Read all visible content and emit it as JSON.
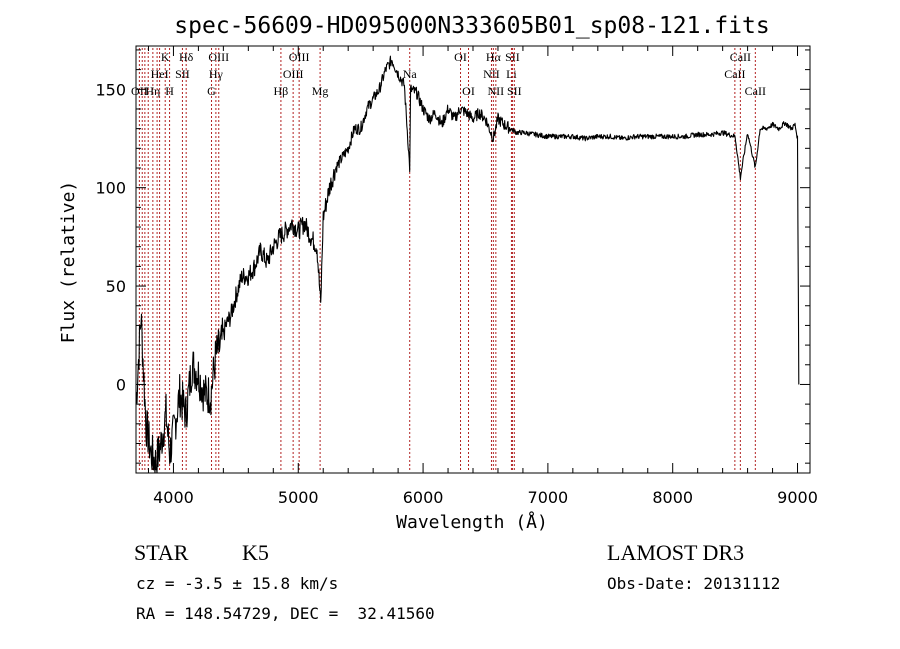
{
  "chart_data": {
    "type": "line",
    "title": "spec-56609-HD095000N333605B01_sp08-121.fits",
    "xlabel": "Wavelength (Å)",
    "ylabel": "Flux (relative)",
    "xlim": [
      3700,
      9100
    ],
    "ylim": [
      -45,
      172
    ],
    "xticks": [
      4000,
      5000,
      6000,
      7000,
      8000,
      9000
    ],
    "xtick_labels": [
      "4000",
      "5000",
      "6000",
      "7000",
      "8000",
      "9000"
    ],
    "yticks": [
      0,
      50,
      100,
      150
    ],
    "ytick_labels": [
      "0",
      "50",
      "100",
      "150"
    ],
    "grid": false,
    "series": [
      {
        "color": "#000000",
        "x": [
          3700,
          3740,
          3780,
          3820,
          3860,
          3900,
          3940,
          3970,
          4000,
          4050,
          4100,
          4150,
          4200,
          4250,
          4300,
          4340,
          4380,
          4420,
          4460,
          4500,
          4550,
          4600,
          4650,
          4700,
          4750,
          4800,
          4850,
          4900,
          4950,
          5000,
          5050,
          5100,
          5150,
          5180,
          5200,
          5250,
          5300,
          5350,
          5400,
          5450,
          5500,
          5550,
          5600,
          5650,
          5700,
          5750,
          5800,
          5850,
          5893,
          5900,
          5950,
          6000,
          6050,
          6100,
          6150,
          6200,
          6250,
          6300,
          6350,
          6400,
          6450,
          6500,
          6563,
          6600,
          6650,
          6700,
          6750,
          6800,
          6900,
          7000,
          7100,
          7200,
          7300,
          7400,
          7500,
          7600,
          7700,
          7800,
          7900,
          8000,
          8100,
          8200,
          8300,
          8400,
          8500,
          8542,
          8600,
          8662,
          8700,
          8750,
          8800,
          8850,
          8900,
          8950,
          8980,
          9000,
          9010
        ],
        "y": [
          -10,
          35,
          -20,
          -35,
          -40,
          -30,
          -15,
          -35,
          -25,
          -5,
          -15,
          10,
          5,
          -5,
          -5,
          15,
          20,
          30,
          35,
          45,
          55,
          55,
          60,
          68,
          62,
          70,
          75,
          78,
          82,
          78,
          82,
          75,
          70,
          40,
          85,
          100,
          110,
          115,
          120,
          130,
          130,
          140,
          145,
          150,
          160,
          165,
          158,
          152,
          110,
          150,
          148,
          140,
          135,
          138,
          132,
          140,
          135,
          140,
          138,
          135,
          138,
          135,
          125,
          135,
          132,
          130,
          128,
          128,
          127,
          126,
          126,
          126,
          125,
          126,
          126,
          125,
          126,
          126,
          126,
          126,
          126,
          127,
          127,
          128,
          126,
          105,
          128,
          110,
          130,
          130,
          132,
          130,
          133,
          130,
          132,
          125,
          0
        ]
      }
    ],
    "lines": [
      {
        "x": 3727,
        "label": "OII",
        "row": 2
      },
      {
        "x": 3750,
        "label": "",
        "row": 0
      },
      {
        "x": 3771,
        "label": "",
        "row": 0
      },
      {
        "x": 3798,
        "label": "",
        "row": 0
      },
      {
        "x": 3835,
        "label": "Hη",
        "row": 2
      },
      {
        "x": 3869,
        "label": "",
        "row": 0
      },
      {
        "x": 3889,
        "label": "HeI",
        "row": 1
      },
      {
        "x": 3934,
        "label": "K",
        "row": 0
      },
      {
        "x": 3969,
        "label": "H",
        "row": 2
      },
      {
        "x": 4072,
        "label": "SII",
        "row": 1
      },
      {
        "x": 4102,
        "label": "Hδ",
        "row": 0
      },
      {
        "x": 4305,
        "label": "G",
        "row": 2
      },
      {
        "x": 4340,
        "label": "Hγ",
        "row": 1
      },
      {
        "x": 4363,
        "label": "OIII",
        "row": 0
      },
      {
        "x": 4861,
        "label": "Hβ",
        "row": 2
      },
      {
        "x": 4959,
        "label": "OIII",
        "row": 1
      },
      {
        "x": 5007,
        "label": "OIII",
        "row": 0
      },
      {
        "x": 5175,
        "label": "Mg",
        "row": 2
      },
      {
        "x": 5893,
        "label": "Na",
        "row": 1
      },
      {
        "x": 6300,
        "label": "OI",
        "row": 0
      },
      {
        "x": 6364,
        "label": "OI",
        "row": 2
      },
      {
        "x": 6548,
        "label": "NII",
        "row": 1
      },
      {
        "x": 6563,
        "label": "Hα",
        "row": 0
      },
      {
        "x": 6583,
        "label": "NII",
        "row": 2
      },
      {
        "x": 6708,
        "label": "Li",
        "row": 1
      },
      {
        "x": 6716,
        "label": "SII",
        "row": 0
      },
      {
        "x": 6731,
        "label": "SII",
        "row": 2
      },
      {
        "x": 8498,
        "label": "CaII",
        "row": 1
      },
      {
        "x": 8542,
        "label": "CaII",
        "row": 0
      },
      {
        "x": 8662,
        "label": "CaII",
        "row": 2
      }
    ],
    "line_color": "#b22222"
  },
  "info": {
    "object_class": "STAR",
    "subclass": "K5",
    "survey": "LAMOST DR3",
    "redshift": "cz = -3.5 ± 15.8 km/s",
    "obs_date": "Obs-Date: 20131112",
    "coords": "RA = 148.54729, DEC =  32.41560"
  }
}
